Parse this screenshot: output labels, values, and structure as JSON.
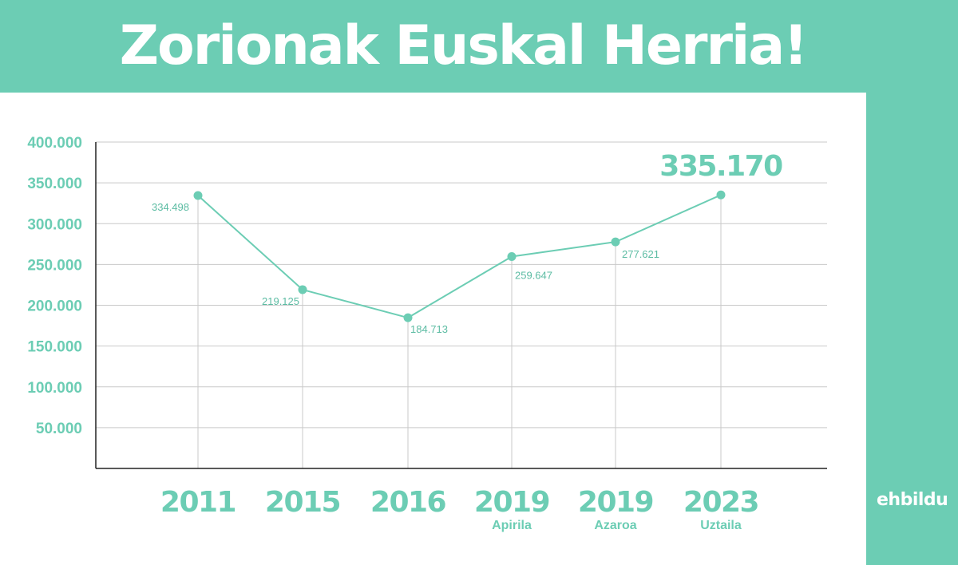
{
  "header": {
    "title": "Zorionak Euskal Herria!"
  },
  "brand": {
    "logo_text": "ehbildu"
  },
  "colors": {
    "accent": "#6ccdb4",
    "panel": "#ffffff",
    "grid": "#c9c9c9",
    "axis": "#222222"
  },
  "chart_data": {
    "type": "line",
    "categories": [
      "2011",
      "2015",
      "2016",
      "2019",
      "2019",
      "2023"
    ],
    "category_sublabels": [
      "",
      "",
      "",
      "Apirila",
      "Azaroa",
      "Uztaila"
    ],
    "values": [
      334498,
      219125,
      184713,
      259647,
      277621,
      335170
    ],
    "value_labels": [
      "334.498",
      "219.125",
      "184.713",
      "259.647",
      "277.621",
      "335.170"
    ],
    "highlight_index": 5,
    "yticks": [
      50000,
      100000,
      150000,
      200000,
      250000,
      300000,
      350000,
      400000
    ],
    "ytick_labels": [
      "50.000",
      "100.000",
      "150.000",
      "200.000",
      "250.000",
      "300.000",
      "350.000",
      "400.000"
    ],
    "ylim": [
      0,
      400000
    ],
    "grid": true,
    "title": "",
    "xlabel": "",
    "ylabel": ""
  }
}
